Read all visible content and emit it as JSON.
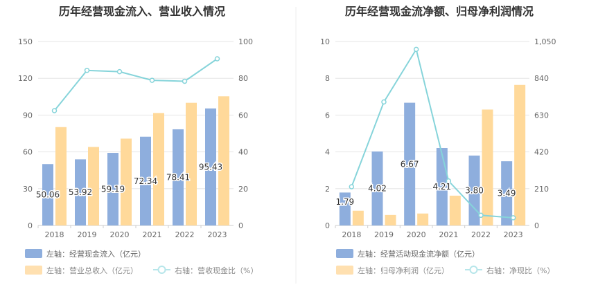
{
  "colors": {
    "bar_left": "#8eaedd",
    "bar_right": "#ffd99a",
    "line": "#86d4da",
    "axis_text": "#666666",
    "grid": "#e6e6e6",
    "title": "#333333",
    "divider": "#eeeeee"
  },
  "chart_data": [
    {
      "type": "bar",
      "title": "历年经营现金流入、营业收入情况",
      "categories": [
        "2018",
        "2019",
        "2020",
        "2021",
        "2022",
        "2023"
      ],
      "y_left": {
        "ticks": [
          "0",
          "30",
          "60",
          "90",
          "120",
          "150"
        ],
        "ylim": [
          0,
          150
        ]
      },
      "y_right": {
        "ticks": [
          "0",
          "20",
          "40",
          "60",
          "80",
          "100"
        ],
        "ylim": [
          0,
          100
        ]
      },
      "series": [
        {
          "name": "左轴：经营现金流入（亿元）",
          "axis": "left",
          "type": "bar",
          "values": [
            50.06,
            53.92,
            59.19,
            72.34,
            78.41,
            95.43
          ],
          "labels": [
            "50.06",
            "53.92",
            "59.19",
            "72.34",
            "78.41",
            "95.43"
          ]
        },
        {
          "name": "左轴：营业总收入（亿元）",
          "axis": "left",
          "type": "bar",
          "values": [
            80.2,
            64.0,
            70.8,
            91.7,
            100.0,
            105.3
          ]
        },
        {
          "name": "右轴：营收现金比（%）",
          "axis": "right",
          "type": "line",
          "values": [
            62.4,
            84.3,
            83.6,
            78.9,
            78.4,
            90.6
          ]
        }
      ],
      "grid": true
    },
    {
      "type": "bar",
      "title": "历年经营现金流净额、归母净利润情况",
      "categories": [
        "2018",
        "2019",
        "2020",
        "2021",
        "2022",
        "2023"
      ],
      "y_left": {
        "ticks": [
          "0",
          "2",
          "4",
          "6",
          "8",
          "10"
        ],
        "ylim": [
          0,
          10
        ]
      },
      "y_right": {
        "ticks": [
          "0",
          "210",
          "420",
          "630",
          "840",
          "1,050"
        ],
        "ylim": [
          0,
          1050
        ]
      },
      "series": [
        {
          "name": "左轴：经营活动现金流净额（亿元）",
          "axis": "left",
          "type": "bar",
          "values": [
            1.79,
            4.02,
            6.67,
            4.21,
            3.8,
            3.49
          ],
          "labels": [
            "1.79",
            "4.02",
            "6.67",
            "4.21",
            "3.80",
            "3.49"
          ]
        },
        {
          "name": "左轴：归母净利润（亿元）",
          "axis": "left",
          "type": "bar",
          "values": [
            0.8,
            0.57,
            0.65,
            1.62,
            6.3,
            7.64
          ]
        },
        {
          "name": "右轴：净现比（%）",
          "axis": "right",
          "type": "line",
          "values": [
            221.0,
            705.0,
            1005.0,
            254.0,
            58.0,
            44.0
          ]
        }
      ],
      "grid": true
    }
  ]
}
